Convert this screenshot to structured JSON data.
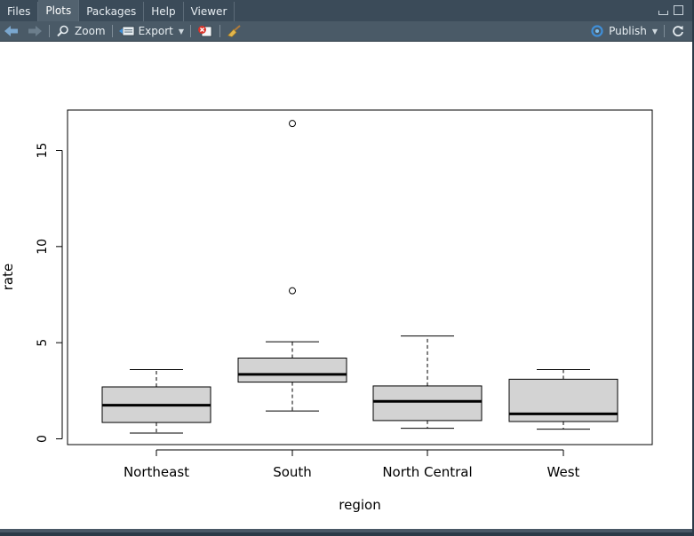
{
  "tabs": [
    {
      "label": "Files",
      "active": false
    },
    {
      "label": "Plots",
      "active": true
    },
    {
      "label": "Packages",
      "active": false
    },
    {
      "label": "Help",
      "active": false
    },
    {
      "label": "Viewer",
      "active": false
    }
  ],
  "toolbar": {
    "zoom_label": "Zoom",
    "export_label": "Export",
    "publish_label": "Publish"
  },
  "colors": {
    "box_fill": "#d3d3d3",
    "accent_publish": "#3f8fd8"
  },
  "chart_data": {
    "type": "boxplot",
    "xlabel": "region",
    "ylabel": "rate",
    "ylim": [
      -0.3,
      17.1
    ],
    "yticks": [
      0,
      5,
      10,
      15
    ],
    "categories": [
      "Northeast",
      "South",
      "North Central",
      "West"
    ],
    "boxes": [
      {
        "name": "Northeast",
        "min": 0.3,
        "q1": 0.85,
        "median": 1.75,
        "q3": 2.7,
        "max": 3.6,
        "outliers": []
      },
      {
        "name": "South",
        "min": 1.45,
        "q1": 2.95,
        "median": 3.35,
        "q3": 4.2,
        "max": 5.05,
        "outliers": [
          7.7,
          16.4
        ]
      },
      {
        "name": "North Central",
        "min": 0.55,
        "q1": 0.95,
        "median": 1.95,
        "q3": 2.75,
        "max": 5.35,
        "outliers": []
      },
      {
        "name": "West",
        "min": 0.5,
        "q1": 0.9,
        "median": 1.3,
        "q3": 3.1,
        "max": 3.6,
        "outliers": []
      }
    ]
  }
}
